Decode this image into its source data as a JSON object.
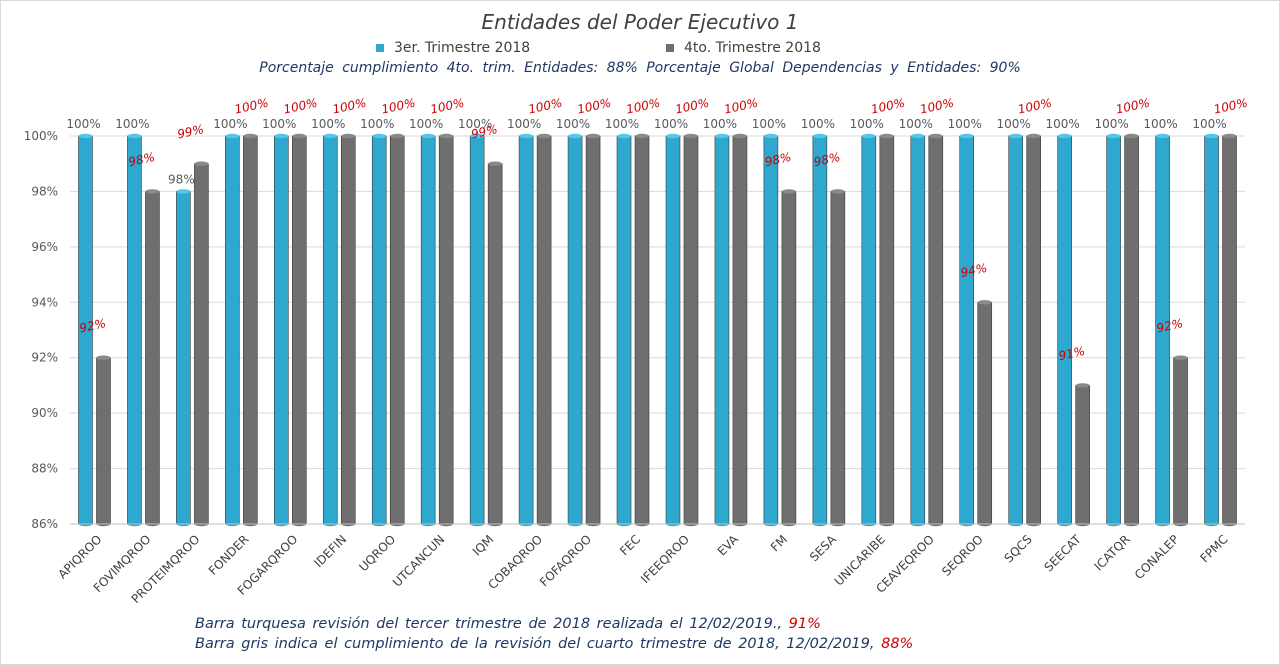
{
  "colors": {
    "series1": "#2fa8cf",
    "series2": "#6f6f6f",
    "series1_top": "#56c6e6",
    "series2_top": "#8a8a8a",
    "label_red": "#cc0000",
    "label_gray": "#595959",
    "grid": "#d9d9d9",
    "note_text": "#1f3864"
  },
  "header": {
    "title": "Entidades del Poder Ejecutivo 1",
    "subtitle": "Porcentaje  cumplimiento   4to. trim. Entidades:  88%    Porcentaje  Global  Dependencias  y Entidades:  90%"
  },
  "notes": {
    "line1_text": "Barra turquesa  revisión del tercer trimestre de 2018 realizada el  12/02/2019.,",
    "line1_pct": "91%",
    "line2_text": "Barra gris indica el cumplimiento  de la revisión del cuarto trimestre de 2018,  12/02/2019,",
    "line2_pct": "88%"
  },
  "chart_data": {
    "type": "bar",
    "title": "Entidades del Poder Ejecutivo 1",
    "categories": [
      "APIQROO",
      "FOVIMQROO",
      "PROTEIMQROO",
      "FONDER",
      "FOGARQROO",
      "IDEFIN",
      "UQROO",
      "UTCANCUN",
      "IQM",
      "COBAQROO",
      "FOFAQROO",
      "FEC",
      "IFEEQROO",
      "EVA",
      "FM",
      "SESA",
      "UNICARIBE",
      "CEAVEQROO",
      "SEQROO",
      "SQCS",
      "SEECAT",
      "ICATQR",
      "CONALEP",
      "FPMC"
    ],
    "series": [
      {
        "name": "3er. Trimestre 2018",
        "values": [
          100,
          100,
          98,
          100,
          100,
          100,
          100,
          100,
          100,
          100,
          100,
          100,
          100,
          100,
          100,
          100,
          100,
          100,
          100,
          100,
          100,
          100,
          100,
          100
        ]
      },
      {
        "name": "4to. Trimestre 2018",
        "values": [
          92,
          98,
          99,
          100,
          100,
          100,
          100,
          100,
          99,
          100,
          100,
          100,
          100,
          100,
          98,
          98,
          100,
          100,
          94,
          100,
          91,
          100,
          92,
          100
        ]
      }
    ],
    "series1_labels": [
      "100%",
      "100%",
      "98%",
      "100%",
      "100%",
      "100%",
      "100%",
      "100%",
      "100%",
      "100%",
      "100%",
      "100%",
      "100%",
      "100%",
      "100%",
      "100%",
      "100%",
      "100%",
      "100%",
      "100%",
      "100%",
      "100%",
      "100%",
      "100%"
    ],
    "series2_labels": [
      "92%",
      "98%",
      "99%",
      "100%",
      "100%",
      "100%",
      "100%",
      "100%",
      "99%",
      "100%",
      "100%",
      "100%",
      "100%",
      "100%",
      "98%",
      "98%",
      "100%",
      "100%",
      "94%",
      "100%",
      "91%",
      "100%",
      "92%",
      "100%"
    ],
    "ylim": [
      86,
      100
    ],
    "yticks": [
      86,
      88,
      90,
      92,
      94,
      96,
      98,
      100
    ],
    "ytick_labels": [
      "86%",
      "88%",
      "90%",
      "92%",
      "94%",
      "96%",
      "98%",
      "100%"
    ],
    "xlabel": "",
    "ylabel": "",
    "grid": true,
    "legend_position": "top-center"
  }
}
